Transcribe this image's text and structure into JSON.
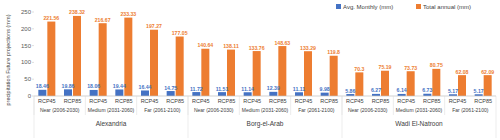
{
  "chart_data": {
    "type": "bar",
    "ylabel": "precipitation Future projections (mm)",
    "categories": [
      "RCP45",
      "RCP85",
      "RCP45",
      "RCP85",
      "RCP45",
      "RCP85",
      "RCP45",
      "RCP85",
      "RCP45",
      "RCP85",
      "RCP45",
      "RCP85",
      "RCP45",
      "RCP85",
      "RCP45",
      "RCP85",
      "RCP45",
      "RCP85"
    ],
    "periods": [
      "Near (2006-2030)",
      "Medium (2031-2060)",
      "Far (2061-2100)",
      "Near (2006-2030)",
      "Medium (2031-2060)",
      "Far (2061-2100)",
      "Near (2006-2030)",
      "Medium (2031-2060)",
      "Far (2061-2100)"
    ],
    "stations": [
      "Alexandria",
      "Borg-el-Arab",
      "Wadi El-Natroon"
    ],
    "series": [
      {
        "name": "Avg. Monthly (mm)",
        "color": "#4472c4",
        "values": [
          18.46,
          19.86,
          18.06,
          19.44,
          16.44,
          14.75,
          11.72,
          11.51,
          11.14,
          12.39,
          11.11,
          9.98,
          5.86,
          6.27,
          6.14,
          6.73,
          5.17,
          5.17
        ]
      },
      {
        "name": "Total annual (mm)",
        "color": "#ed7d31",
        "values": [
          221.56,
          238.32,
          216.67,
          233.33,
          197.27,
          177.05,
          140.64,
          138.11,
          133.76,
          148.63,
          133.29,
          119.8,
          70.3,
          75.19,
          73.73,
          80.75,
          62.08,
          62.09
        ]
      }
    ],
    "ylim": [
      0,
      250
    ],
    "yticks": [
      0,
      50,
      100,
      150,
      200,
      250
    ],
    "grid": false,
    "legend": "top-right",
    "data_labels": true
  }
}
